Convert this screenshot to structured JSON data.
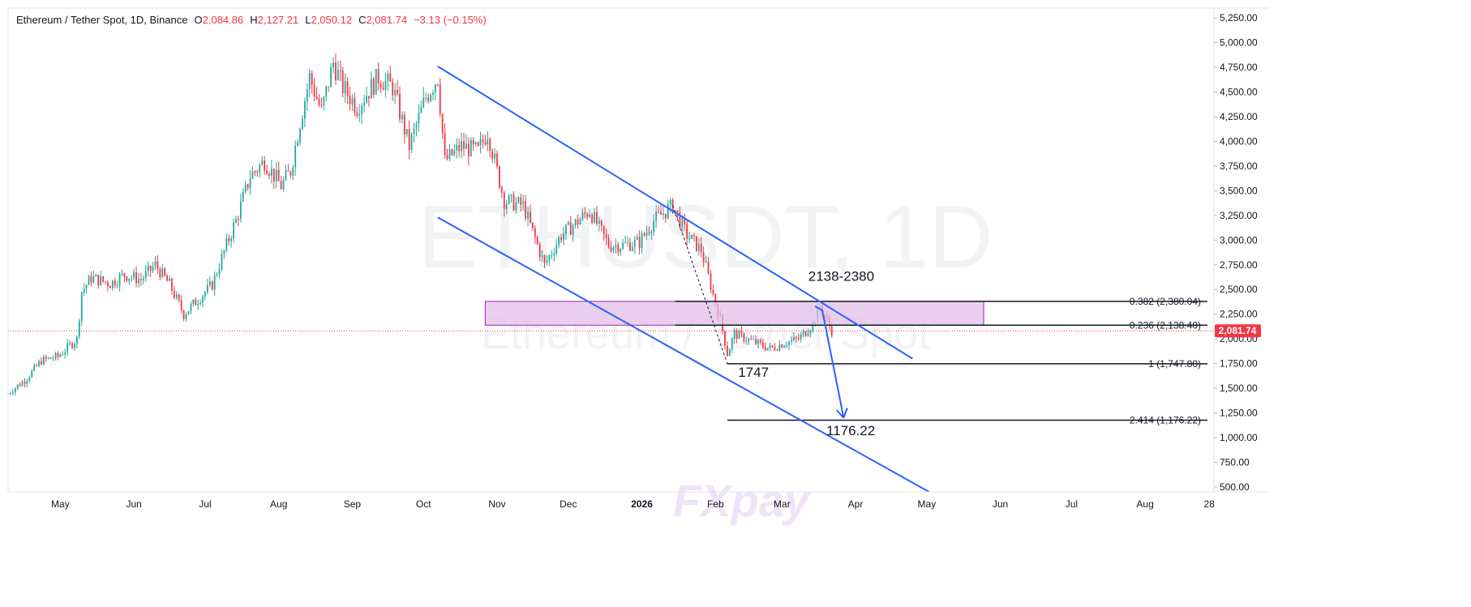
{
  "symbol_header": {
    "name": "Ethereum / Tether Spot, 1D, Binance",
    "o_label": "O",
    "o_value": "2,084.86",
    "h_label": "H",
    "h_value": "2,127.21",
    "l_label": "L",
    "l_value": "2,050.12",
    "c_label": "C",
    "c_value": "2,081.74",
    "change": "−3.13 (−0.15%)"
  },
  "watermark": {
    "ticker": "ETHUSDT, 1D",
    "name": "Ethereum / Tether Spot"
  },
  "logo": {
    "text": "FXpay"
  },
  "colors": {
    "up": "#26a69a",
    "down": "#f23645",
    "channel": "#2962ff",
    "zone_fill": "#e1bee7",
    "zone_border": "#9c27b0",
    "price_tag": "#f23645"
  },
  "chart_data": {
    "type": "candlestick",
    "title": "Ethereum / Tether Spot, 1D, Binance",
    "y_axis_ticks": [
      "5,250.00",
      "5,000.00",
      "4,750.00",
      "4,500.00",
      "4,250.00",
      "4,000.00",
      "3,750.00",
      "3,500.00",
      "3,250.00",
      "3,000.00",
      "2,750.00",
      "2,500.00",
      "2,250.00",
      "2,000.00",
      "1,750.00",
      "1,500.00",
      "1,250.00",
      "1,000.00",
      "750.00",
      "500.00"
    ],
    "y_range": [
      450,
      5350
    ],
    "x_axis_ticks": [
      "May",
      "Jun",
      "Jul",
      "Aug",
      "Sep",
      "Oct",
      "Nov",
      "Dec",
      "2026",
      "Feb",
      "Mar",
      "Apr",
      "May",
      "Jun",
      "Jul",
      "Aug",
      "28"
    ],
    "x_range": [
      "2025-04-09",
      "2026-08-30"
    ],
    "last_price": "2,081.74",
    "price_path": [
      [
        "2025-04-09",
        1450
      ],
      [
        "2025-04-16",
        1580
      ],
      [
        "2025-04-23",
        1780
      ],
      [
        "2025-04-30",
        1820
      ],
      [
        "2025-05-08",
        2000
      ],
      [
        "2025-05-10",
        2480
      ],
      [
        "2025-05-14",
        2620
      ],
      [
        "2025-05-22",
        2560
      ],
      [
        "2025-05-28",
        2650
      ],
      [
        "2025-06-04",
        2600
      ],
      [
        "2025-06-10",
        2750
      ],
      [
        "2025-06-16",
        2550
      ],
      [
        "2025-06-22",
        2250
      ],
      [
        "2025-06-28",
        2400
      ],
      [
        "2025-07-04",
        2550
      ],
      [
        "2025-07-10",
        2950
      ],
      [
        "2025-07-14",
        3200
      ],
      [
        "2025-07-20",
        3650
      ],
      [
        "2025-07-26",
        3800
      ],
      [
        "2025-08-02",
        3550
      ],
      [
        "2025-08-06",
        3700
      ],
      [
        "2025-08-10",
        4200
      ],
      [
        "2025-08-14",
        4650
      ],
      [
        "2025-08-19",
        4300
      ],
      [
        "2025-08-24",
        4800
      ],
      [
        "2025-08-28",
        4550
      ],
      [
        "2025-09-03",
        4350
      ],
      [
        "2025-09-12",
        4650
      ],
      [
        "2025-09-18",
        4550
      ],
      [
        "2025-09-25",
        3950
      ],
      [
        "2025-10-02",
        4450
      ],
      [
        "2025-10-07",
        4650
      ],
      [
        "2025-10-10",
        3800
      ],
      [
        "2025-10-17",
        3950
      ],
      [
        "2025-10-24",
        3900
      ],
      [
        "2025-10-28",
        4100
      ],
      [
        "2025-11-04",
        3400
      ],
      [
        "2025-11-12",
        3350
      ],
      [
        "2025-11-21",
        2750
      ],
      [
        "2025-11-28",
        3050
      ],
      [
        "2025-12-03",
        3150
      ],
      [
        "2025-12-10",
        3300
      ],
      [
        "2025-12-18",
        2950
      ],
      [
        "2025-12-24",
        2950
      ],
      [
        "2025-12-31",
        2980
      ],
      [
        "2026-01-06",
        3200
      ],
      [
        "2026-01-14",
        3350
      ],
      [
        "2026-01-20",
        3050
      ],
      [
        "2026-01-26",
        2900
      ],
      [
        "2026-01-31",
        2450
      ],
      [
        "2026-02-03",
        2200
      ],
      [
        "2026-02-06",
        1850
      ],
      [
        "2026-02-09",
        2050
      ],
      [
        "2026-02-16",
        1980
      ],
      [
        "2026-02-24",
        1900
      ],
      [
        "2026-03-01",
        1950
      ],
      [
        "2026-03-08",
        2000
      ],
      [
        "2026-03-14",
        2150
      ],
      [
        "2026-03-17",
        2330
      ],
      [
        "2026-03-20",
        2180
      ],
      [
        "2026-03-22",
        2082
      ]
    ],
    "channel_lines": [
      {
        "name": "upper",
        "points": [
          [
            "2025-10-07",
            4760
          ],
          [
            "2026-04-25",
            1800
          ]
        ]
      },
      {
        "name": "lower",
        "points": [
          [
            "2025-10-07",
            3230
          ],
          [
            "2026-05-02",
            450
          ]
        ]
      }
    ],
    "fib_levels": [
      {
        "label": "0.382 (2,380.04)",
        "value": 2380.04,
        "from": "2026-01-15"
      },
      {
        "label": "0.236 (2,138.40)",
        "value": 2138.4,
        "from": "2026-01-15"
      },
      {
        "label": "1 (1,747.80)",
        "value": 1747.8,
        "from": "2026-02-06"
      },
      {
        "label": "2.414 (1,176.22)",
        "value": 1176.22,
        "from": "2026-02-06"
      }
    ],
    "zone": {
      "from": "2025-10-27",
      "to": "2026-05-25",
      "low": 2138.4,
      "high": 2380.04
    },
    "projection": [
      [
        "2026-03-15",
        2330
      ],
      [
        "2026-03-18",
        2290
      ],
      [
        "2026-03-27",
        1200
      ]
    ],
    "fib_connector": [
      [
        "2026-01-14",
        3350
      ],
      [
        "2026-02-06",
        1748
      ]
    ],
    "annotations": [
      {
        "text": "2138-2380",
        "x": "2026-03-26",
        "y": 2590
      },
      {
        "text": "1747",
        "x": "2026-02-17",
        "y": 1615
      },
      {
        "text": "1176.22",
        "x": "2026-03-30",
        "y": 1025
      }
    ]
  }
}
